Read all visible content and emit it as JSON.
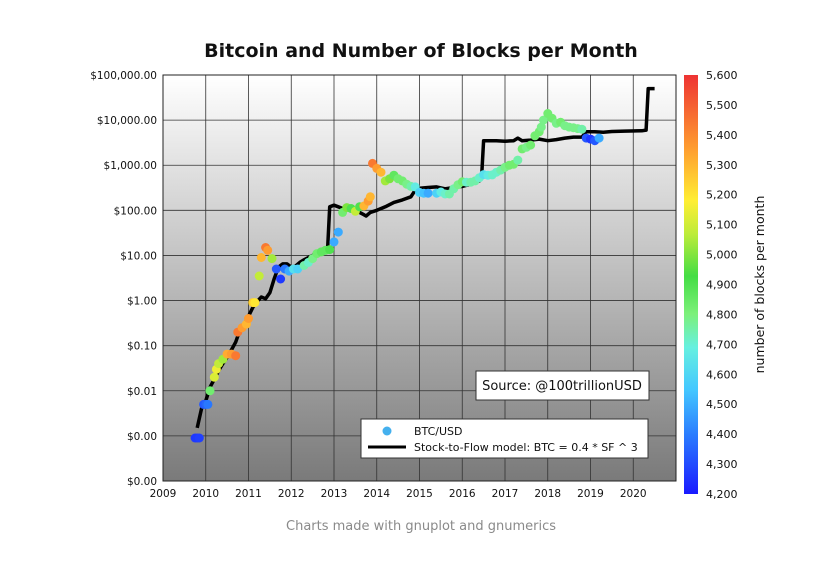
{
  "caption": "Charts made with gnuplot and gnumerics",
  "chart_data": {
    "type": "scatter",
    "title": "Bitcoin and Number of Blocks per Month",
    "xlabel": "",
    "ylabel": "",
    "x_ticks": [
      "2009",
      "2010",
      "2011",
      "2012",
      "2013",
      "2014",
      "2015",
      "2016",
      "2017",
      "2018",
      "2019",
      "2020"
    ],
    "xlim": [
      2009,
      2021
    ],
    "y_scale": "log",
    "ylim": [
      0.0001,
      100000
    ],
    "y_ticks": [
      {
        "value": 100000,
        "label": "$100,000.00"
      },
      {
        "value": 10000,
        "label": "$10,000.00"
      },
      {
        "value": 1000,
        "label": "$1,000.00"
      },
      {
        "value": 100,
        "label": "$100.00"
      },
      {
        "value": 10,
        "label": "$10.00"
      },
      {
        "value": 1,
        "label": "$1.00"
      },
      {
        "value": 0.1,
        "label": "$0.10"
      },
      {
        "value": 0.01,
        "label": "$0.01"
      },
      {
        "value": 0.001,
        "label": "$0.00"
      },
      {
        "value": 0.0001,
        "label": "$0.00"
      }
    ],
    "grid": true,
    "legend_position": "bottom-right",
    "annotation": "Source: @100trillionUSD",
    "colorbar": {
      "label": "number of blocks per month",
      "min": 4200,
      "max": 5600,
      "ticks": [
        "5,600",
        "5,500",
        "5,400",
        "5,300",
        "5,200",
        "5,100",
        "5,000",
        "4,900",
        "4,800",
        "4,700",
        "4,600",
        "4,500",
        "4,400",
        "4,300",
        "4,200"
      ],
      "colors": [
        "#1a1aff",
        "#2a7bff",
        "#44c8ff",
        "#66f0e0",
        "#7cf07a",
        "#44dd44",
        "#bcec3a",
        "#ffee33",
        "#ffa030",
        "#ee3333"
      ]
    },
    "series": [
      {
        "name": "BTC/USD",
        "kind": "points",
        "points": [
          [
            2009.75,
            0.0009,
            4250
          ],
          [
            2009.8,
            0.0009,
            4250
          ],
          [
            2009.85,
            0.0009,
            4260
          ],
          [
            2009.95,
            0.005,
            4300
          ],
          [
            2010.0,
            0.005,
            4320
          ],
          [
            2010.05,
            0.005,
            4350
          ],
          [
            2010.1,
            0.01,
            4850
          ],
          [
            2010.2,
            0.02,
            5200
          ],
          [
            2010.25,
            0.03,
            5250
          ],
          [
            2010.3,
            0.04,
            5150
          ],
          [
            2010.4,
            0.05,
            5100
          ],
          [
            2010.5,
            0.065,
            5420
          ],
          [
            2010.6,
            0.065,
            5450
          ],
          [
            2010.7,
            0.06,
            5500
          ],
          [
            2010.75,
            0.2,
            5500
          ],
          [
            2010.85,
            0.25,
            5450
          ],
          [
            2010.95,
            0.3,
            5400
          ],
          [
            2011.0,
            0.4,
            5450
          ],
          [
            2011.1,
            0.9,
            5350
          ],
          [
            2011.15,
            0.9,
            5300
          ],
          [
            2011.25,
            3.5,
            5150
          ],
          [
            2011.3,
            9.0,
            5400
          ],
          [
            2011.4,
            15.0,
            5500
          ],
          [
            2011.45,
            13.0,
            5450
          ],
          [
            2011.55,
            8.5,
            5100
          ],
          [
            2011.65,
            5.0,
            4300
          ],
          [
            2011.75,
            3.0,
            4250
          ],
          [
            2011.85,
            5.0,
            4350
          ],
          [
            2011.95,
            4.5,
            4450
          ],
          [
            2012.05,
            5.0,
            4600
          ],
          [
            2012.15,
            5.0,
            4550
          ],
          [
            2012.3,
            6.0,
            4750
          ],
          [
            2012.4,
            7.0,
            4700
          ],
          [
            2012.5,
            8.5,
            4800
          ],
          [
            2012.6,
            11.0,
            4850
          ],
          [
            2012.7,
            12.0,
            4900
          ],
          [
            2012.8,
            13.0,
            4900
          ],
          [
            2012.9,
            13.5,
            4950
          ],
          [
            2013.0,
            20.0,
            4450
          ],
          [
            2013.1,
            33.0,
            4450
          ],
          [
            2013.2,
            90.0,
            4850
          ],
          [
            2013.3,
            115.0,
            5050
          ],
          [
            2013.4,
            110.0,
            4950
          ],
          [
            2013.5,
            95.0,
            5150
          ],
          [
            2013.6,
            120.0,
            4950
          ],
          [
            2013.7,
            125.0,
            5400
          ],
          [
            2013.8,
            160.0,
            5450
          ],
          [
            2013.85,
            200.0,
            5400
          ],
          [
            2013.9,
            1100.0,
            5500
          ],
          [
            2014.0,
            850.0,
            5450
          ],
          [
            2014.1,
            700.0,
            5400
          ],
          [
            2014.2,
            450.0,
            5100
          ],
          [
            2014.3,
            500.0,
            5050
          ],
          [
            2014.4,
            600.0,
            4900
          ],
          [
            2014.5,
            500.0,
            4850
          ],
          [
            2014.6,
            450.0,
            4850
          ],
          [
            2014.7,
            380.0,
            4800
          ],
          [
            2014.8,
            340.0,
            4750
          ],
          [
            2014.9,
            330.0,
            4650
          ],
          [
            2015.0,
            250.0,
            4550
          ],
          [
            2015.1,
            240.0,
            4500
          ],
          [
            2015.2,
            240.0,
            4450
          ],
          [
            2015.4,
            240.0,
            4550
          ],
          [
            2015.5,
            255.0,
            4650
          ],
          [
            2015.6,
            230.0,
            4700
          ],
          [
            2015.7,
            230.0,
            4750
          ],
          [
            2015.8,
            300.0,
            4750
          ],
          [
            2015.9,
            370.0,
            4800
          ],
          [
            2016.0,
            430.0,
            4850
          ],
          [
            2016.1,
            420.0,
            4700
          ],
          [
            2016.2,
            420.0,
            4750
          ],
          [
            2016.3,
            450.0,
            4750
          ],
          [
            2016.4,
            530.0,
            4700
          ],
          [
            2016.5,
            620.0,
            4600
          ],
          [
            2016.6,
            600.0,
            4650
          ],
          [
            2016.7,
            610.0,
            4700
          ],
          [
            2016.8,
            700.0,
            4700
          ],
          [
            2016.9,
            780.0,
            4750
          ],
          [
            2017.0,
            900.0,
            4800
          ],
          [
            2017.1,
            1000.0,
            4850
          ],
          [
            2017.2,
            1050.0,
            4850
          ],
          [
            2017.3,
            1300.0,
            4750
          ],
          [
            2017.4,
            2300.0,
            4850
          ],
          [
            2017.5,
            2500.0,
            4800
          ],
          [
            2017.6,
            2800.0,
            4850
          ],
          [
            2017.7,
            4500.0,
            4850
          ],
          [
            2017.8,
            5500.0,
            4850
          ],
          [
            2017.85,
            7000.0,
            4800
          ],
          [
            2017.9,
            10000.0,
            4800
          ],
          [
            2018.0,
            14000.0,
            4850
          ],
          [
            2018.1,
            11000.0,
            4850
          ],
          [
            2018.2,
            8500.0,
            4800
          ],
          [
            2018.3,
            9000.0,
            4850
          ],
          [
            2018.4,
            7500.0,
            4800
          ],
          [
            2018.5,
            7000.0,
            4800
          ],
          [
            2018.6,
            6800.0,
            4800
          ],
          [
            2018.7,
            6500.0,
            4800
          ],
          [
            2018.8,
            6300.0,
            4750
          ],
          [
            2018.9,
            4000.0,
            4300
          ],
          [
            2019.0,
            3800.0,
            4250
          ],
          [
            2019.1,
            3500.0,
            4300
          ],
          [
            2019.2,
            4000.0,
            4450
          ]
        ]
      },
      {
        "name": "Stock-to-Flow model: BTC = 0.4 * SF ^ 3",
        "kind": "line",
        "points": [
          [
            2009.8,
            0.0015
          ],
          [
            2009.9,
            0.004
          ],
          [
            2010.0,
            0.006
          ],
          [
            2010.1,
            0.012
          ],
          [
            2010.2,
            0.018
          ],
          [
            2010.3,
            0.028
          ],
          [
            2010.4,
            0.04
          ],
          [
            2010.5,
            0.055
          ],
          [
            2010.6,
            0.08
          ],
          [
            2010.7,
            0.12
          ],
          [
            2010.8,
            0.22
          ],
          [
            2010.9,
            0.3
          ],
          [
            2011.0,
            0.45
          ],
          [
            2011.1,
            0.7
          ],
          [
            2011.2,
            0.95
          ],
          [
            2011.3,
            1.2
          ],
          [
            2011.4,
            1.1
          ],
          [
            2011.5,
            1.5
          ],
          [
            2011.6,
            3.0
          ],
          [
            2011.7,
            5.5
          ],
          [
            2011.8,
            6.5
          ],
          [
            2011.9,
            6.5
          ],
          [
            2012.0,
            5.5
          ],
          [
            2012.1,
            5.8
          ],
          [
            2012.2,
            7.0
          ],
          [
            2012.3,
            8.0
          ],
          [
            2012.4,
            9.0
          ],
          [
            2012.5,
            10.0
          ],
          [
            2012.6,
            11.0
          ],
          [
            2012.7,
            12.0
          ],
          [
            2012.8,
            13.0
          ],
          [
            2012.85,
            14.0
          ],
          [
            2012.9,
            120.0
          ],
          [
            2013.0,
            130.0
          ],
          [
            2013.1,
            120.0
          ],
          [
            2013.2,
            110.0
          ],
          [
            2013.3,
            110.0
          ],
          [
            2013.4,
            100.0
          ],
          [
            2013.5,
            95.0
          ],
          [
            2013.6,
            90.0
          ],
          [
            2013.7,
            80.0
          ],
          [
            2013.75,
            75.0
          ],
          [
            2013.85,
            90.0
          ],
          [
            2014.0,
            100.0
          ],
          [
            2014.2,
            120.0
          ],
          [
            2014.4,
            150.0
          ],
          [
            2014.6,
            170.0
          ],
          [
            2014.8,
            200.0
          ],
          [
            2014.9,
            280.0
          ],
          [
            2015.0,
            310.0
          ],
          [
            2015.2,
            320.0
          ],
          [
            2015.4,
            330.0
          ],
          [
            2015.6,
            300.0
          ],
          [
            2015.8,
            320.0
          ],
          [
            2016.0,
            340.0
          ],
          [
            2016.2,
            380.0
          ],
          [
            2016.4,
            450.0
          ],
          [
            2016.45,
            500.0
          ],
          [
            2016.5,
            3500.0
          ],
          [
            2016.8,
            3500.0
          ],
          [
            2017.0,
            3400.0
          ],
          [
            2017.2,
            3500.0
          ],
          [
            2017.3,
            4000.0
          ],
          [
            2017.4,
            3500.0
          ],
          [
            2017.6,
            3600.0
          ],
          [
            2017.8,
            3800.0
          ],
          [
            2018.0,
            3500.0
          ],
          [
            2018.2,
            3700.0
          ],
          [
            2018.4,
            4000.0
          ],
          [
            2018.6,
            4200.0
          ],
          [
            2018.8,
            4200.0
          ],
          [
            2018.9,
            5500.0
          ],
          [
            2019.1,
            5500.0
          ],
          [
            2019.3,
            5400.0
          ],
          [
            2019.5,
            5600.0
          ],
          [
            2019.8,
            5700.0
          ],
          [
            2020.2,
            5800.0
          ],
          [
            2020.3,
            6000.0
          ],
          [
            2020.35,
            50000.0
          ],
          [
            2020.5,
            50000.0
          ]
        ]
      }
    ]
  }
}
